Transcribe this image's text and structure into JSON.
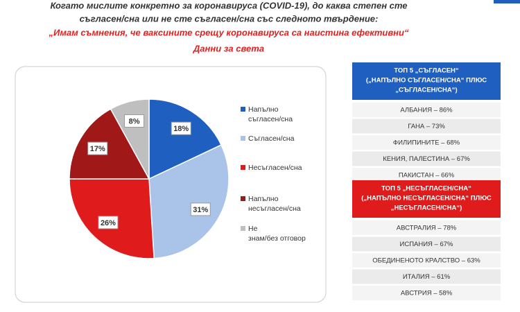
{
  "chart_data": {
    "type": "pie",
    "title_lines": [
      "Когато мислите конкретно за коронавируса (COVID-19), до каква степен сте",
      "съгласен/сна или не сте съгласен/сна със следното твърдение:"
    ],
    "subtitle": "„Имам съмнения, че ваксините срещу коронавируса са наистина ефективни“",
    "note": "Данни за света",
    "categories": [
      "Напълно съгласен/сна",
      "Съгласен/сна",
      "Несъгласен/сна",
      "Напълно несъгласен/сна",
      "Не знам/без отговор"
    ],
    "values": [
      18,
      31,
      26,
      17,
      8
    ],
    "value_labels": [
      "18%",
      "31%",
      "26%",
      "17%",
      "8%"
    ],
    "colors": [
      "#1f5fbf",
      "#a9c4e8",
      "#e01b1b",
      "#a11818",
      "#bfbfbf"
    ],
    "legend": "right"
  },
  "agree_table": {
    "header": [
      "ТОП 5 „СЪГЛАСЕН“",
      "(„НАПЪЛНО СЪГЛАСЕН/СНА“ ПЛЮС",
      "„СЪГЛАСЕН/СНА“)"
    ],
    "rows": [
      "АЛБАНИЯ – 86%",
      "ГАНА – 73%",
      "ФИЛИПИНИТЕ – 68%",
      "КЕНИЯ, ПАЛЕСТИНА – 67%",
      "ПАКИСТАН – 66%"
    ]
  },
  "disagree_table": {
    "header": [
      "ТОП 5 „НЕСЪГЛАСЕН/СНА“",
      "(„НАПЪЛНО НЕСЪГЛАСЕН/СНА“ ПЛЮС",
      "„НЕСЪГЛАСЕН/СНА“)"
    ],
    "rows": [
      "АВСТРАЛИЯ – 78%",
      "ИСПАНИЯ – 67%",
      "ОБЕДИНЕНОТО КРАЛСТВО – 63%",
      "ИТАЛИЯ – 61%",
      "АВСТРИЯ – 58%"
    ]
  }
}
